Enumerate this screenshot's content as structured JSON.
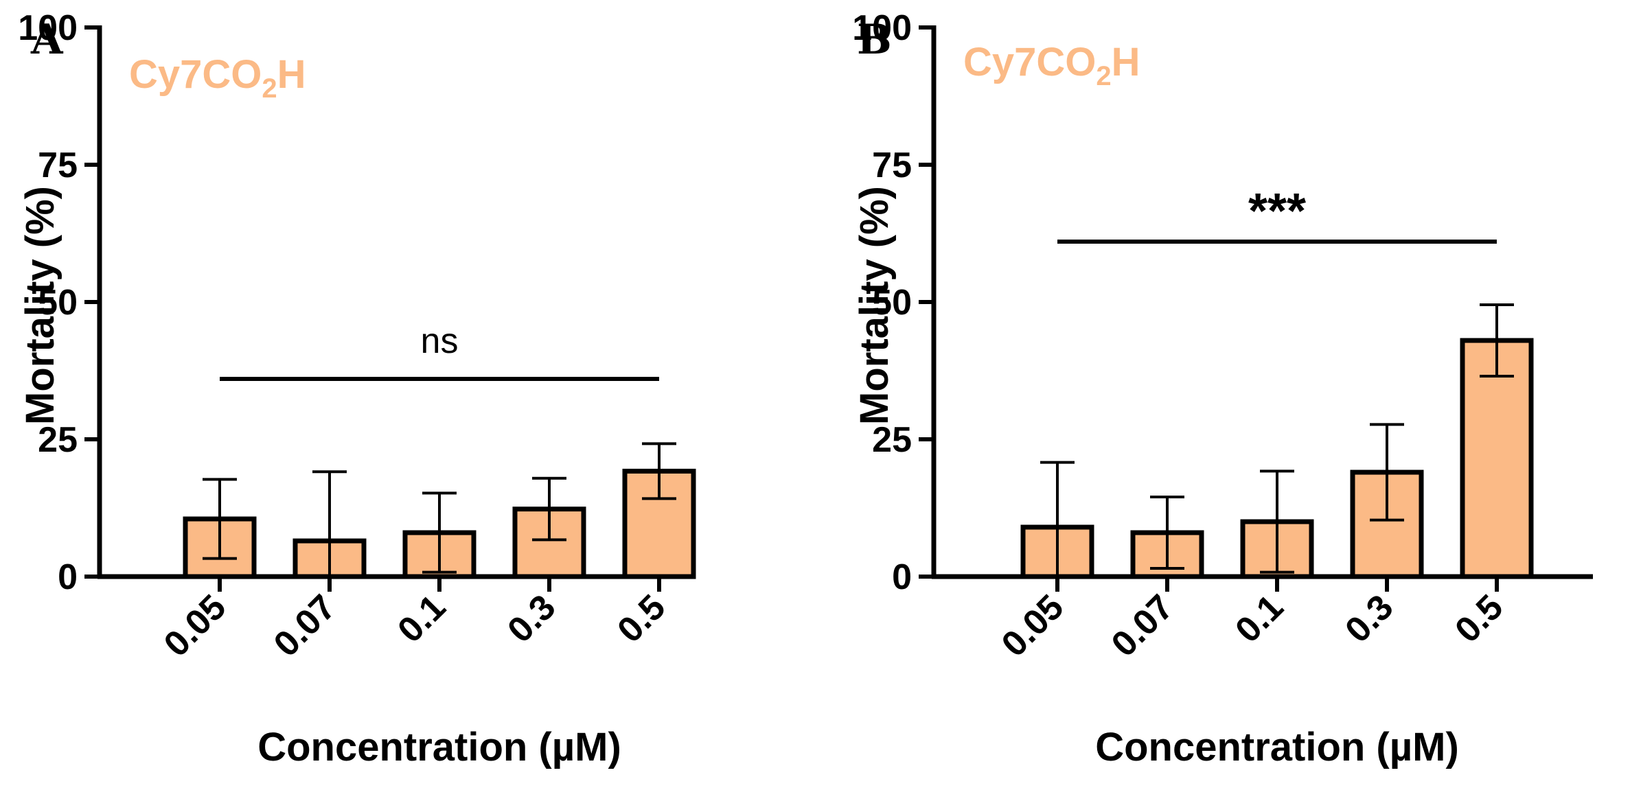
{
  "colors": {
    "bar_fill": "#FBBA86",
    "bar_stroke": "#000000",
    "series_text": "#FBBA86",
    "axis": "#000000"
  },
  "chart_data": [
    {
      "panel": "A",
      "type": "bar",
      "series_name": {
        "base": "Cy7CO",
        "subscript": "2",
        "suffix": "H"
      },
      "categories": [
        "0.05",
        "0.07",
        "0.1",
        "0.3",
        "0.5"
      ],
      "values": [
        10.5,
        6.5,
        8,
        12.3,
        19.2
      ],
      "errors": [
        7.2,
        12.6,
        7.2,
        5.6,
        5
      ],
      "xlabel": "Concentration (µM)",
      "ylabel": "Mortality (%)",
      "ylim": [
        0,
        100
      ],
      "yticks": [
        "0",
        "25",
        "50",
        "75",
        "100"
      ],
      "significance": {
        "label": "ns",
        "from_category": "0.05",
        "to_category": "0.5",
        "y": 36
      }
    },
    {
      "panel": "B",
      "type": "bar",
      "series_name": {
        "base": "Cy7CO",
        "subscript": "2",
        "suffix": "H"
      },
      "categories": [
        "0.05",
        "0.07",
        "0.1",
        "0.3",
        "0.5"
      ],
      "values": [
        9,
        8,
        10,
        19,
        43
      ],
      "errors": [
        11.8,
        6.5,
        9.2,
        8.7,
        6.5
      ],
      "xlabel": "Concentration (µM)",
      "ylabel": "Mortality (%)",
      "ylim": [
        0,
        100
      ],
      "yticks": [
        "0",
        "25",
        "50",
        "75",
        "100"
      ],
      "significance": {
        "label": "***",
        "from_category": "0.05",
        "to_category": "0.5",
        "y": 61
      }
    }
  ]
}
